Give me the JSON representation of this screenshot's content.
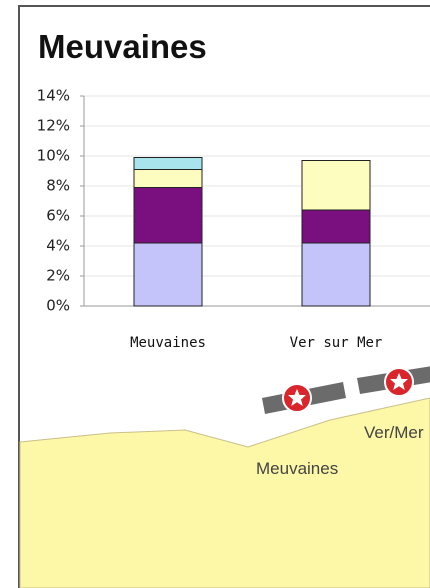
{
  "chart_data": {
    "type": "stacked-bar",
    "title": "Meuvaines",
    "categories": [
      "Meuvaines",
      "Ver sur Mer"
    ],
    "series": [
      {
        "color": "#c4c4fb",
        "values": [
          4.2,
          4.2
        ]
      },
      {
        "color": "#7a0f80",
        "values": [
          3.7,
          2.2
        ]
      },
      {
        "color": "#fdfdc0",
        "values": [
          1.2,
          3.3
        ]
      },
      {
        "color": "#a8e4ec",
        "values": [
          0.8,
          0
        ]
      }
    ],
    "ylim": [
      0,
      14
    ],
    "yticks": [
      {
        "value": 0,
        "label": "0%"
      },
      {
        "value": 2,
        "label": "2%"
      },
      {
        "value": 4,
        "label": "4%"
      },
      {
        "value": 6,
        "label": "6%"
      },
      {
        "value": 8,
        "label": "8%"
      },
      {
        "value": 10,
        "label": "10%"
      },
      {
        "value": 12,
        "label": "12%"
      },
      {
        "value": 14,
        "label": "14%"
      }
    ],
    "grid": true
  },
  "map": {
    "labels": [
      "Ver/Mer",
      "Meuvaines"
    ]
  }
}
